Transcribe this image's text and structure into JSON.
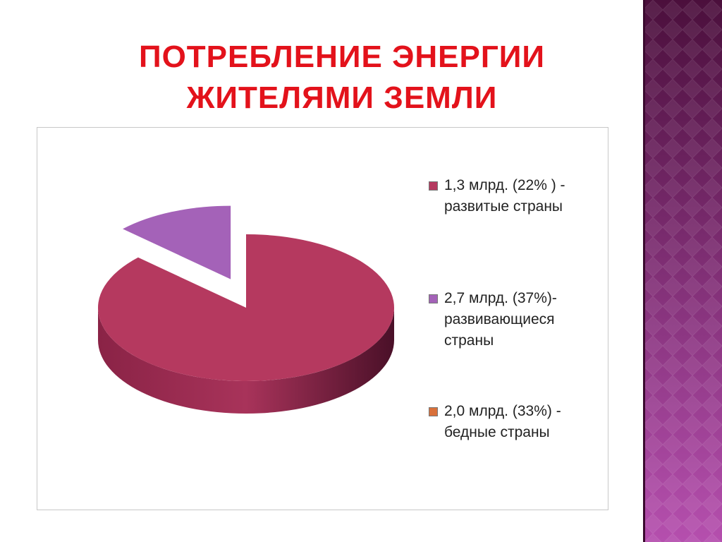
{
  "chart_data": {
    "type": "pie",
    "title": "ПОТРЕБЛЕНИЕ ЭНЕРГИИ ЖИТЕЛЯМИ ЗЕМЛИ",
    "categories": [
      "1,3 млрд. (22% ) - развитые страны",
      "2,7 млрд. (37%)- развивающиеся страны",
      "2,0 млрд. (33%) - бедные страны"
    ],
    "values": [
      87,
      13,
      0
    ],
    "colors": [
      "#b5395f",
      "#a462b8",
      "#d9703a"
    ],
    "legend": "right"
  }
}
